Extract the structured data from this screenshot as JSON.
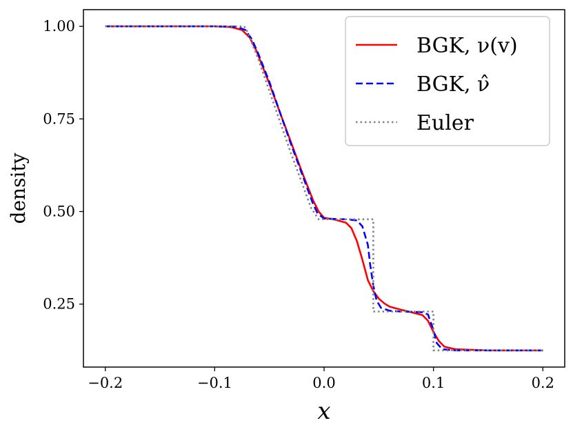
{
  "chart_data": {
    "type": "line",
    "xlabel": "x",
    "ylabel": "density",
    "xlim": [
      -0.22,
      0.22
    ],
    "ylim": [
      0.08,
      1.045
    ],
    "xticks": [
      -0.2,
      -0.1,
      0.0,
      0.1,
      0.2
    ],
    "xtick_labels": [
      "−0.2",
      "−0.1",
      "0.0",
      "0.1",
      "0.2"
    ],
    "yticks": [
      0.25,
      0.5,
      0.75,
      1.0
    ],
    "ytick_labels": [
      "0.25",
      "0.50",
      "0.75",
      "1.00"
    ],
    "grid": false,
    "legend_position": "top-right",
    "series": [
      {
        "name": "BGK, ν(v)",
        "color": "#ff0000",
        "dash": "solid",
        "x": [
          -0.2,
          -0.1,
          -0.085,
          -0.075,
          -0.068,
          -0.062,
          -0.05,
          -0.04,
          -0.03,
          -0.02,
          -0.01,
          -0.005,
          0.0,
          0.01,
          0.02,
          0.025,
          0.03,
          0.035,
          0.04,
          0.045,
          0.05,
          0.055,
          0.06,
          0.07,
          0.08,
          0.09,
          0.095,
          0.1,
          0.105,
          0.11,
          0.12,
          0.15,
          0.2
        ],
        "y": [
          1.0,
          1.0,
          0.998,
          0.99,
          0.97,
          0.935,
          0.845,
          0.765,
          0.685,
          0.605,
          0.53,
          0.5,
          0.483,
          0.478,
          0.47,
          0.455,
          0.42,
          0.37,
          0.315,
          0.285,
          0.265,
          0.252,
          0.243,
          0.235,
          0.228,
          0.22,
          0.205,
          0.175,
          0.15,
          0.135,
          0.128,
          0.125,
          0.125
        ]
      },
      {
        "name": "BGK, ν̂",
        "color": "#0000ff",
        "dash": "dashed",
        "x": [
          -0.2,
          -0.1,
          -0.08,
          -0.072,
          -0.066,
          -0.06,
          -0.05,
          -0.04,
          -0.03,
          -0.02,
          -0.01,
          -0.006,
          0.0,
          0.01,
          0.02,
          0.03,
          0.035,
          0.04,
          0.042,
          0.045,
          0.048,
          0.052,
          0.06,
          0.07,
          0.08,
          0.09,
          0.095,
          0.1,
          0.103,
          0.108,
          0.12,
          0.15,
          0.2
        ],
        "y": [
          1.0,
          1.0,
          0.999,
          0.99,
          0.965,
          0.925,
          0.85,
          0.765,
          0.68,
          0.6,
          0.52,
          0.495,
          0.481,
          0.48,
          0.479,
          0.476,
          0.46,
          0.41,
          0.36,
          0.3,
          0.26,
          0.24,
          0.232,
          0.23,
          0.229,
          0.228,
          0.222,
          0.18,
          0.145,
          0.128,
          0.125,
          0.125,
          0.125
        ]
      },
      {
        "name": "Euler",
        "color": "#808080",
        "dash": "dotted",
        "x": [
          -0.2,
          -0.073,
          -0.07,
          -0.06,
          -0.05,
          -0.04,
          -0.03,
          -0.02,
          -0.012,
          -0.005,
          0.0,
          0.045,
          0.045,
          0.1,
          0.1,
          0.2
        ],
        "y": [
          1.0,
          1.0,
          0.985,
          0.91,
          0.825,
          0.74,
          0.655,
          0.575,
          0.51,
          0.479,
          0.479,
          0.479,
          0.23,
          0.23,
          0.125,
          0.125
        ]
      }
    ]
  }
}
